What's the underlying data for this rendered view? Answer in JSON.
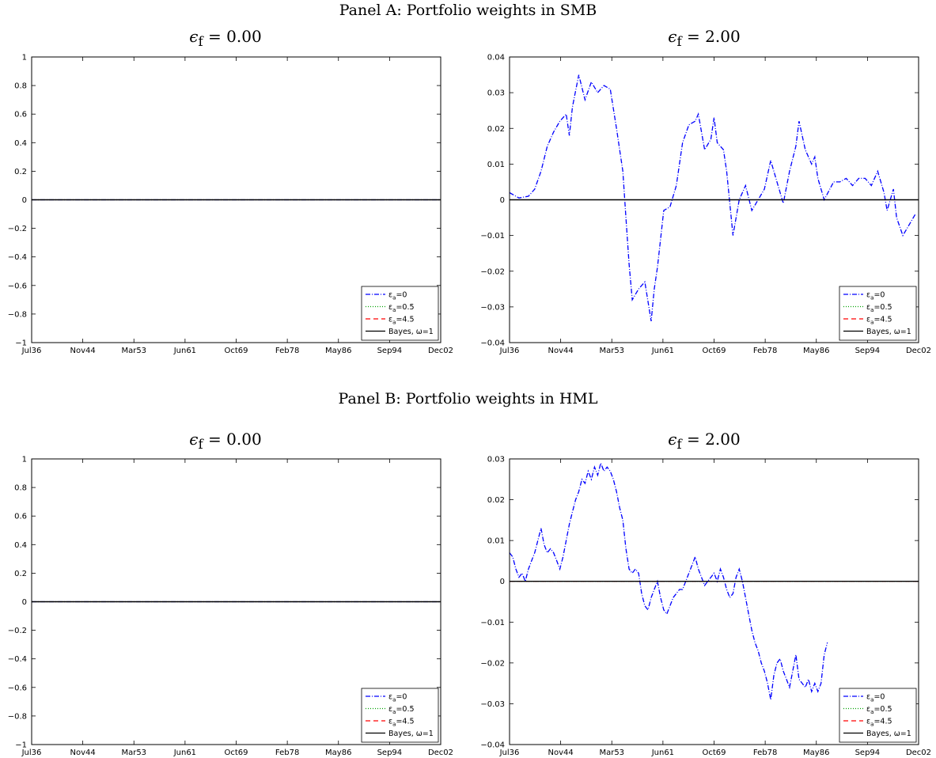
{
  "panels": [
    {
      "title": "Panel A: Portfolio weights in SMB"
    },
    {
      "title": "Panel B: Portfolio weights in HML"
    }
  ],
  "subplot_titles": [
    {
      "symbol": "ϵ",
      "sub": "f",
      "value": "= 0.00"
    },
    {
      "symbol": "ϵ",
      "sub": "f",
      "value": "= 2.00"
    }
  ],
  "legend": [
    {
      "base": "ε",
      "sub": "a",
      "suffix": "=0",
      "color": "#0000ff",
      "dash": "6,2,1,2"
    },
    {
      "base": "ε",
      "sub": "a",
      "suffix": "=0.5",
      "color": "#00a000",
      "dash": "1,2"
    },
    {
      "base": "ε",
      "sub": "a",
      "suffix": "=4.5",
      "color": "#ff0000",
      "dash": "6,4"
    },
    {
      "base": "Bayes, ω=1",
      "sub": "",
      "suffix": "",
      "color": "#000000",
      "dash": ""
    }
  ],
  "chart_data": [
    {
      "type": "line",
      "panel": "Panel A: Portfolio weights in SMB",
      "title": "ϵ_f = 0.00",
      "x": [
        "Jul36",
        "Nov44",
        "Mar53",
        "Jun61",
        "Oct69",
        "Feb78",
        "May86",
        "Sep94",
        "Dec02"
      ],
      "ylim": [
        -1,
        1
      ],
      "yticks": [
        "1",
        "0.8",
        "0.6",
        "0.4",
        "0.2",
        "0",
        "−0.2",
        "−0.4",
        "−0.6",
        "−0.8",
        "−1"
      ],
      "series": [
        {
          "name": "εa=0",
          "values": [
            0,
            0,
            0,
            0,
            0,
            0,
            0,
            0,
            0
          ]
        },
        {
          "name": "εa=0.5",
          "values": [
            0,
            0,
            0,
            0,
            0,
            0,
            0,
            0,
            0
          ]
        },
        {
          "name": "εa=4.5",
          "values": [
            0,
            0,
            0,
            0,
            0,
            0,
            0,
            0,
            0
          ]
        },
        {
          "name": "Bayes, ω=1",
          "values": [
            0,
            0,
            0,
            0,
            0,
            0,
            0,
            0,
            0
          ]
        }
      ],
      "legend_position": "bottom-right",
      "grid": false
    },
    {
      "type": "line",
      "panel": "Panel A: Portfolio weights in SMB",
      "title": "ϵ_f = 2.00",
      "x": [
        "Jul36",
        "Nov44",
        "Mar53",
        "Jun61",
        "Oct69",
        "Feb78",
        "May86",
        "Sep94",
        "Dec02"
      ],
      "ylim": [
        -0.04,
        0.04
      ],
      "yticks": [
        "0.04",
        "0.03",
        "0.02",
        "0.01",
        "0",
        "−0.01",
        "−0.02",
        "−0.03",
        "−0.04"
      ],
      "series": [
        {
          "name": "εa=0",
          "points": [
            [
              0,
              0.002
            ],
            [
              0.03,
              0.0005
            ],
            [
              0.06,
              0.001
            ],
            [
              0.08,
              0.003
            ],
            [
              0.1,
              0.008
            ],
            [
              0.12,
              0.015
            ],
            [
              0.14,
              0.019
            ],
            [
              0.16,
              0.022
            ],
            [
              0.18,
              0.024
            ],
            [
              0.19,
              0.018
            ],
            [
              0.2,
              0.026
            ],
            [
              0.22,
              0.035
            ],
            [
              0.24,
              0.028
            ],
            [
              0.26,
              0.033
            ],
            [
              0.28,
              0.03
            ],
            [
              0.3,
              0.032
            ],
            [
              0.32,
              0.031
            ],
            [
              0.34,
              0.02
            ],
            [
              0.36,
              0.008
            ],
            [
              0.37,
              -0.005
            ],
            [
              0.38,
              -0.018
            ],
            [
              0.39,
              -0.028
            ],
            [
              0.41,
              -0.025
            ],
            [
              0.43,
              -0.023
            ],
            [
              0.45,
              -0.034
            ],
            [
              0.46,
              -0.025
            ],
            [
              0.47,
              -0.019
            ],
            [
              0.49,
              -0.003
            ],
            [
              0.51,
              -0.002
            ],
            [
              0.53,
              0.004
            ],
            [
              0.55,
              0.016
            ],
            [
              0.57,
              0.021
            ],
            [
              0.59,
              0.022
            ],
            [
              0.6,
              0.024
            ],
            [
              0.62,
              0.014
            ],
            [
              0.64,
              0.017
            ],
            [
              0.65,
              0.023
            ],
            [
              0.66,
              0.016
            ],
            [
              0.68,
              0.014
            ],
            [
              0.69,
              0.008
            ],
            [
              0.71,
              -0.01
            ],
            [
              0.73,
              0.0
            ],
            [
              0.75,
              0.004
            ],
            [
              0.77,
              -0.003
            ],
            [
              0.79,
              0.0
            ],
            [
              0.81,
              0.003
            ],
            [
              0.83,
              0.011
            ],
            [
              0.85,
              0.005
            ],
            [
              0.87,
              -0.001
            ],
            [
              0.89,
              0.008
            ],
            [
              0.91,
              0.015
            ],
            [
              0.92,
              0.022
            ],
            [
              0.94,
              0.014
            ],
            [
              0.96,
              0.01
            ],
            [
              0.97,
              0.012
            ],
            [
              0.98,
              0.006
            ],
            [
              1.0,
              0.0
            ],
            [
              1.03,
              0.005
            ],
            [
              1.05,
              0.005
            ],
            [
              1.07,
              0.006
            ],
            [
              1.09,
              0.004
            ],
            [
              1.11,
              0.006
            ],
            [
              1.13,
              0.006
            ],
            [
              1.15,
              0.004
            ],
            [
              1.17,
              0.008
            ],
            [
              1.19,
              0.002
            ],
            [
              1.2,
              -0.003
            ],
            [
              1.22,
              0.003
            ],
            [
              1.23,
              -0.005
            ],
            [
              1.25,
              -0.01
            ],
            [
              1.27,
              -0.007
            ],
            [
              1.29,
              -0.004
            ]
          ]
        },
        {
          "name": "εa=0.5",
          "values": [
            0,
            0,
            0,
            0,
            0,
            0,
            0,
            0,
            0
          ]
        },
        {
          "name": "εa=4.5",
          "values": [
            0,
            0,
            0,
            0,
            0,
            0,
            0,
            0,
            0
          ]
        },
        {
          "name": "Bayes, ω=1",
          "values": [
            0,
            0,
            0,
            0,
            0,
            0,
            0,
            0,
            0
          ]
        }
      ],
      "legend_position": "bottom-right",
      "grid": false
    },
    {
      "type": "line",
      "panel": "Panel B: Portfolio weights in HML",
      "title": "ϵ_f = 0.00",
      "x": [
        "Jul36",
        "Nov44",
        "Mar53",
        "Jun61",
        "Oct69",
        "Feb78",
        "May86",
        "Sep94",
        "Dec02"
      ],
      "ylim": [
        -1,
        1
      ],
      "yticks": [
        "1",
        "0.8",
        "0.6",
        "0.4",
        "0.2",
        "0",
        "−0.2",
        "−0.4",
        "−0.6",
        "−0.8",
        "−1"
      ],
      "series": [
        {
          "name": "εa=0",
          "values": [
            0,
            0,
            0,
            0,
            0,
            0,
            0,
            0,
            0
          ]
        },
        {
          "name": "εa=0.5",
          "values": [
            0,
            0,
            0,
            0,
            0,
            0,
            0,
            0,
            0
          ]
        },
        {
          "name": "εa=4.5",
          "values": [
            0,
            0,
            0,
            0,
            0,
            0,
            0,
            0,
            0
          ]
        },
        {
          "name": "Bayes, ω=1",
          "values": [
            0,
            0,
            0,
            0,
            0,
            0,
            0,
            0,
            0
          ]
        }
      ],
      "legend_position": "bottom-right",
      "grid": false
    },
    {
      "type": "line",
      "panel": "Panel B: Portfolio weights in HML",
      "title": "ϵ_f = 2.00",
      "x": [
        "Jul36",
        "Nov44",
        "Mar53",
        "Jun61",
        "Oct69",
        "Feb78",
        "May86",
        "Sep94",
        "Dec02"
      ],
      "ylim": [
        -0.04,
        0.03
      ],
      "yticks": [
        "0.03",
        "0.02",
        "0.01",
        "0",
        "−0.01",
        "−0.02",
        "−0.03",
        "−0.04"
      ],
      "series": [
        {
          "name": "εa=0",
          "points": [
            [
              0,
              0.007
            ],
            [
              0.01,
              0.006
            ],
            [
              0.02,
              0.003
            ],
            [
              0.03,
              0.001
            ],
            [
              0.04,
              0.002
            ],
            [
              0.05,
              0.0
            ],
            [
              0.06,
              0.003
            ],
            [
              0.07,
              0.005
            ],
            [
              0.08,
              0.007
            ],
            [
              0.09,
              0.01
            ],
            [
              0.1,
              0.013
            ],
            [
              0.11,
              0.009
            ],
            [
              0.12,
              0.007
            ],
            [
              0.13,
              0.008
            ],
            [
              0.14,
              0.007
            ],
            [
              0.15,
              0.005
            ],
            [
              0.16,
              0.003
            ],
            [
              0.17,
              0.006
            ],
            [
              0.18,
              0.01
            ],
            [
              0.19,
              0.014
            ],
            [
              0.2,
              0.017
            ],
            [
              0.21,
              0.02
            ],
            [
              0.22,
              0.022
            ],
            [
              0.23,
              0.025
            ],
            [
              0.24,
              0.024
            ],
            [
              0.25,
              0.027
            ],
            [
              0.26,
              0.025
            ],
            [
              0.27,
              0.028
            ],
            [
              0.28,
              0.026
            ],
            [
              0.29,
              0.029
            ],
            [
              0.3,
              0.027
            ],
            [
              0.31,
              0.028
            ],
            [
              0.32,
              0.027
            ],
            [
              0.33,
              0.025
            ],
            [
              0.34,
              0.022
            ],
            [
              0.35,
              0.018
            ],
            [
              0.36,
              0.015
            ],
            [
              0.37,
              0.008
            ],
            [
              0.38,
              0.003
            ],
            [
              0.39,
              0.002
            ],
            [
              0.4,
              0.003
            ],
            [
              0.41,
              0.002
            ],
            [
              0.42,
              -0.003
            ],
            [
              0.43,
              -0.006
            ],
            [
              0.44,
              -0.007
            ],
            [
              0.45,
              -0.004
            ],
            [
              0.46,
              -0.002
            ],
            [
              0.47,
              0.0
            ],
            [
              0.48,
              -0.004
            ],
            [
              0.49,
              -0.007
            ],
            [
              0.5,
              -0.008
            ],
            [
              0.51,
              -0.006
            ],
            [
              0.52,
              -0.004
            ],
            [
              0.53,
              -0.003
            ],
            [
              0.54,
              -0.002
            ],
            [
              0.55,
              -0.002
            ],
            [
              0.56,
              0.0
            ],
            [
              0.57,
              0.002
            ],
            [
              0.58,
              0.004
            ],
            [
              0.59,
              0.006
            ],
            [
              0.6,
              0.003
            ],
            [
              0.61,
              0.001
            ],
            [
              0.62,
              -0.001
            ],
            [
              0.63,
              0.0
            ],
            [
              0.64,
              0.001
            ],
            [
              0.65,
              0.002
            ],
            [
              0.66,
              0.0
            ],
            [
              0.67,
              0.003
            ],
            [
              0.68,
              0.001
            ],
            [
              0.69,
              -0.002
            ],
            [
              0.7,
              -0.004
            ],
            [
              0.71,
              -0.003
            ],
            [
              0.72,
              0.001
            ],
            [
              0.73,
              0.003
            ],
            [
              0.74,
              0.0
            ],
            [
              0.75,
              -0.004
            ],
            [
              0.76,
              -0.008
            ],
            [
              0.77,
              -0.012
            ],
            [
              0.78,
              -0.015
            ],
            [
              0.79,
              -0.017
            ],
            [
              0.8,
              -0.02
            ],
            [
              0.81,
              -0.022
            ],
            [
              0.82,
              -0.025
            ],
            [
              0.83,
              -0.029
            ],
            [
              0.84,
              -0.023
            ],
            [
              0.85,
              -0.02
            ],
            [
              0.86,
              -0.019
            ],
            [
              0.87,
              -0.022
            ],
            [
              0.88,
              -0.024
            ],
            [
              0.89,
              -0.026
            ],
            [
              0.9,
              -0.022
            ],
            [
              0.91,
              -0.018
            ],
            [
              0.92,
              -0.024
            ],
            [
              0.93,
              -0.025
            ],
            [
              0.94,
              -0.026
            ],
            [
              0.95,
              -0.024
            ],
            [
              0.96,
              -0.027
            ],
            [
              0.97,
              -0.025
            ],
            [
              0.98,
              -0.027
            ],
            [
              0.99,
              -0.025
            ],
            [
              1.0,
              -0.018
            ],
            [
              1.01,
              -0.015
            ]
          ]
        },
        {
          "name": "εa=0.5",
          "values": [
            0,
            0,
            0,
            0,
            0,
            0,
            0,
            0,
            0
          ]
        },
        {
          "name": "εa=4.5",
          "values": [
            0,
            0,
            0,
            0,
            0,
            0,
            0,
            0,
            0
          ]
        },
        {
          "name": "Bayes, ω=1",
          "values": [
            0,
            0,
            0,
            0,
            0,
            0,
            0,
            0,
            0
          ]
        }
      ],
      "legend_position": "bottom-right",
      "grid": false
    }
  ]
}
